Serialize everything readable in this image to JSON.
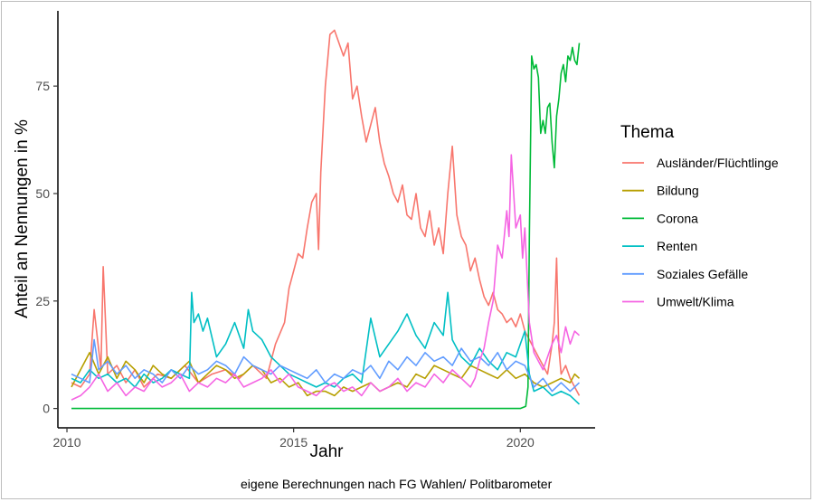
{
  "chart_data": {
    "type": "line",
    "xlabel": "Jahr",
    "ylabel": "Anteil an Nennungen in %",
    "xlim": [
      2009.8,
      2021.65
    ],
    "ylim": [
      -4.5,
      92.5
    ],
    "x_ticks": [
      2010,
      2015,
      2020
    ],
    "x_tick_labels": [
      "2010",
      "2015",
      "2020"
    ],
    "y_ticks": [
      0,
      25,
      50,
      75
    ],
    "y_tick_labels": [
      "0",
      "25",
      "50",
      "75"
    ],
    "legend_title": "Thema",
    "legend_position": "right",
    "caption": "eigene Berechnungen nach FG Wahlen/ Politbarometer",
    "series": [
      {
        "name": "Ausländer/Flüchtlinge",
        "color": "#F8766D",
        "x": [
          2010.1,
          2010.3,
          2010.5,
          2010.6,
          2010.75,
          2010.8,
          2010.9,
          2011.1,
          2011.3,
          2011.5,
          2011.7,
          2012.0,
          2012.3,
          2012.6,
          2012.9,
          2013.2,
          2013.5,
          2013.8,
          2014.1,
          2014.4,
          2014.6,
          2014.8,
          2014.9,
          2015.0,
          2015.1,
          2015.2,
          2015.3,
          2015.4,
          2015.5,
          2015.55,
          2015.6,
          2015.7,
          2015.8,
          2015.9,
          2016.0,
          2016.1,
          2016.2,
          2016.3,
          2016.4,
          2016.5,
          2016.6,
          2016.7,
          2016.8,
          2016.9,
          2017.0,
          2017.1,
          2017.2,
          2017.3,
          2017.4,
          2017.5,
          2017.6,
          2017.7,
          2017.8,
          2017.9,
          2018.0,
          2018.1,
          2018.2,
          2018.3,
          2018.4,
          2018.5,
          2018.6,
          2018.7,
          2018.8,
          2018.9,
          2019.0,
          2019.1,
          2019.2,
          2019.3,
          2019.4,
          2019.5,
          2019.6,
          2019.7,
          2019.8,
          2019.9,
          2020.0,
          2020.1,
          2020.2,
          2020.3,
          2020.4,
          2020.5,
          2020.6,
          2020.7,
          2020.75,
          2020.8,
          2020.85,
          2020.9,
          2021.0,
          2021.1,
          2021.2,
          2021.3
        ],
        "values": [
          6,
          5,
          8,
          23,
          9,
          33,
          8,
          10,
          6,
          9,
          5,
          8,
          7,
          10,
          6,
          8,
          9,
          7,
          10,
          7,
          15,
          20,
          28,
          32,
          36,
          35,
          42,
          48,
          50,
          37,
          55,
          75,
          87,
          88,
          85,
          82,
          85,
          72,
          75,
          68,
          62,
          66,
          70,
          62,
          57,
          54,
          50,
          48,
          52,
          45,
          44,
          50,
          42,
          40,
          46,
          38,
          42,
          36,
          50,
          61,
          45,
          40,
          38,
          32,
          35,
          30,
          26,
          24,
          27,
          23,
          22,
          20,
          21,
          19,
          22,
          18,
          16,
          14,
          12,
          10,
          8,
          15,
          20,
          35,
          14,
          8,
          10,
          7,
          5,
          3
        ]
      },
      {
        "name": "Bildung",
        "color": "#B79F00",
        "x": [
          2010.1,
          2010.3,
          2010.5,
          2010.7,
          2010.9,
          2011.1,
          2011.3,
          2011.5,
          2011.7,
          2011.9,
          2012.1,
          2012.3,
          2012.5,
          2012.7,
          2012.9,
          2013.1,
          2013.3,
          2013.5,
          2013.7,
          2013.9,
          2014.1,
          2014.3,
          2014.5,
          2014.7,
          2014.9,
          2015.1,
          2015.3,
          2015.5,
          2015.7,
          2015.9,
          2016.1,
          2016.3,
          2016.5,
          2016.7,
          2016.9,
          2017.1,
          2017.3,
          2017.5,
          2017.7,
          2017.9,
          2018.1,
          2018.3,
          2018.5,
          2018.7,
          2018.9,
          2019.1,
          2019.3,
          2019.5,
          2019.7,
          2019.9,
          2020.1,
          2020.3,
          2020.5,
          2020.7,
          2020.9,
          2021.1,
          2021.2,
          2021.3
        ],
        "values": [
          5,
          9,
          13,
          8,
          12,
          7,
          11,
          9,
          6,
          10,
          8,
          7,
          9,
          11,
          6,
          8,
          10,
          9,
          7,
          8,
          10,
          9,
          6,
          7,
          5,
          6,
          3,
          4,
          4,
          3,
          5,
          4,
          5,
          6,
          4,
          5,
          6,
          5,
          8,
          7,
          10,
          9,
          8,
          7,
          10,
          9,
          8,
          7,
          9,
          7,
          8,
          6,
          5,
          6,
          7,
          6,
          8,
          7
        ]
      },
      {
        "name": "Corona",
        "color": "#00BA38",
        "x": [
          2010.1,
          2011.0,
          2012.0,
          2013.0,
          2014.0,
          2015.0,
          2016.0,
          2017.0,
          2018.0,
          2019.0,
          2020.0,
          2020.12,
          2020.17,
          2020.2,
          2020.25,
          2020.3,
          2020.35,
          2020.4,
          2020.45,
          2020.5,
          2020.55,
          2020.6,
          2020.65,
          2020.7,
          2020.75,
          2020.8,
          2020.85,
          2020.9,
          2020.95,
          2021.0,
          2021.05,
          2021.1,
          2021.15,
          2021.2,
          2021.25,
          2021.3
        ],
        "values": [
          0,
          0,
          0,
          0,
          0,
          0,
          0,
          0,
          0,
          0,
          0,
          0.5,
          5,
          40,
          82,
          79,
          80,
          77,
          64,
          67,
          64,
          70,
          71,
          62,
          56,
          68,
          72,
          78,
          80,
          76,
          82,
          81,
          84,
          81,
          80,
          85
        ]
      },
      {
        "name": "Renten",
        "color": "#00BFC4",
        "x": [
          2010.1,
          2010.3,
          2010.5,
          2010.7,
          2010.9,
          2011.1,
          2011.3,
          2011.5,
          2011.7,
          2011.9,
          2012.1,
          2012.3,
          2012.5,
          2012.7,
          2012.75,
          2012.8,
          2012.9,
          2013.0,
          2013.1,
          2013.3,
          2013.5,
          2013.7,
          2013.9,
          2014.0,
          2014.1,
          2014.3,
          2014.5,
          2014.7,
          2014.9,
          2015.1,
          2015.3,
          2015.5,
          2015.7,
          2015.9,
          2016.1,
          2016.3,
          2016.5,
          2016.7,
          2016.9,
          2017.1,
          2017.3,
          2017.5,
          2017.7,
          2017.9,
          2018.1,
          2018.3,
          2018.4,
          2018.5,
          2018.7,
          2018.9,
          2019.1,
          2019.3,
          2019.5,
          2019.7,
          2019.9,
          2020.1,
          2020.2,
          2020.3,
          2020.5,
          2020.7,
          2020.9,
          2021.1,
          2021.3
        ],
        "values": [
          7,
          6,
          9,
          7,
          8,
          6,
          7,
          5,
          8,
          6,
          7,
          9,
          8,
          7,
          27,
          20,
          22,
          18,
          21,
          12,
          15,
          20,
          14,
          23,
          18,
          16,
          12,
          10,
          8,
          7,
          6,
          5,
          6,
          5,
          7,
          8,
          6,
          21,
          12,
          15,
          18,
          22,
          17,
          14,
          20,
          17,
          27,
          16,
          12,
          10,
          14,
          11,
          9,
          13,
          12,
          18,
          8,
          4,
          5,
          3,
          4,
          3,
          1
        ]
      },
      {
        "name": "Soziales Gefälle",
        "color": "#619CFF",
        "x": [
          2010.1,
          2010.3,
          2010.5,
          2010.6,
          2010.7,
          2010.9,
          2011.1,
          2011.3,
          2011.5,
          2011.7,
          2011.9,
          2012.1,
          2012.3,
          2012.5,
          2012.7,
          2012.9,
          2013.1,
          2013.3,
          2013.5,
          2013.7,
          2013.9,
          2014.1,
          2014.3,
          2014.5,
          2014.7,
          2014.9,
          2015.1,
          2015.3,
          2015.5,
          2015.7,
          2015.9,
          2016.1,
          2016.3,
          2016.5,
          2016.7,
          2016.9,
          2017.1,
          2017.3,
          2017.5,
          2017.7,
          2017.9,
          2018.1,
          2018.3,
          2018.5,
          2018.7,
          2018.9,
          2019.1,
          2019.3,
          2019.5,
          2019.7,
          2019.9,
          2020.1,
          2020.3,
          2020.5,
          2020.7,
          2020.9,
          2021.1,
          2021.3
        ],
        "values": [
          8,
          7,
          6,
          16,
          9,
          11,
          8,
          10,
          7,
          9,
          8,
          6,
          9,
          7,
          10,
          8,
          9,
          11,
          10,
          8,
          12,
          10,
          9,
          8,
          10,
          9,
          8,
          7,
          9,
          6,
          8,
          7,
          9,
          8,
          10,
          7,
          11,
          9,
          12,
          10,
          13,
          11,
          12,
          10,
          14,
          11,
          12,
          10,
          13,
          9,
          11,
          10,
          5,
          7,
          4,
          6,
          4,
          6
        ]
      },
      {
        "name": "Umwelt/Klima",
        "color": "#F564E3",
        "x": [
          2010.1,
          2010.3,
          2010.5,
          2010.7,
          2010.9,
          2011.1,
          2011.3,
          2011.5,
          2011.7,
          2011.9,
          2012.1,
          2012.3,
          2012.5,
          2012.7,
          2012.9,
          2013.1,
          2013.3,
          2013.5,
          2013.7,
          2013.9,
          2014.1,
          2014.3,
          2014.5,
          2014.7,
          2014.9,
          2015.1,
          2015.3,
          2015.5,
          2015.7,
          2015.9,
          2016.1,
          2016.3,
          2016.5,
          2016.7,
          2016.9,
          2017.1,
          2017.3,
          2017.5,
          2017.7,
          2017.9,
          2018.1,
          2018.3,
          2018.5,
          2018.7,
          2018.9,
          2019.0,
          2019.1,
          2019.2,
          2019.3,
          2019.4,
          2019.5,
          2019.6,
          2019.7,
          2019.75,
          2019.8,
          2019.9,
          2020.0,
          2020.05,
          2020.1,
          2020.2,
          2020.3,
          2020.4,
          2020.5,
          2020.6,
          2020.7,
          2020.8,
          2020.9,
          2021.0,
          2021.1,
          2021.2,
          2021.3
        ],
        "values": [
          2,
          3,
          5,
          8,
          4,
          6,
          3,
          5,
          4,
          7,
          5,
          6,
          8,
          4,
          6,
          5,
          7,
          6,
          8,
          5,
          6,
          7,
          9,
          6,
          8,
          5,
          4,
          3,
          5,
          6,
          4,
          5,
          3,
          6,
          4,
          5,
          7,
          4,
          6,
          5,
          8,
          6,
          9,
          7,
          5,
          7,
          11,
          14,
          20,
          25,
          38,
          35,
          46,
          40,
          59,
          42,
          45,
          35,
          42,
          20,
          13,
          11,
          9,
          12,
          15,
          17,
          13,
          19,
          15,
          18,
          17
        ]
      }
    ]
  }
}
